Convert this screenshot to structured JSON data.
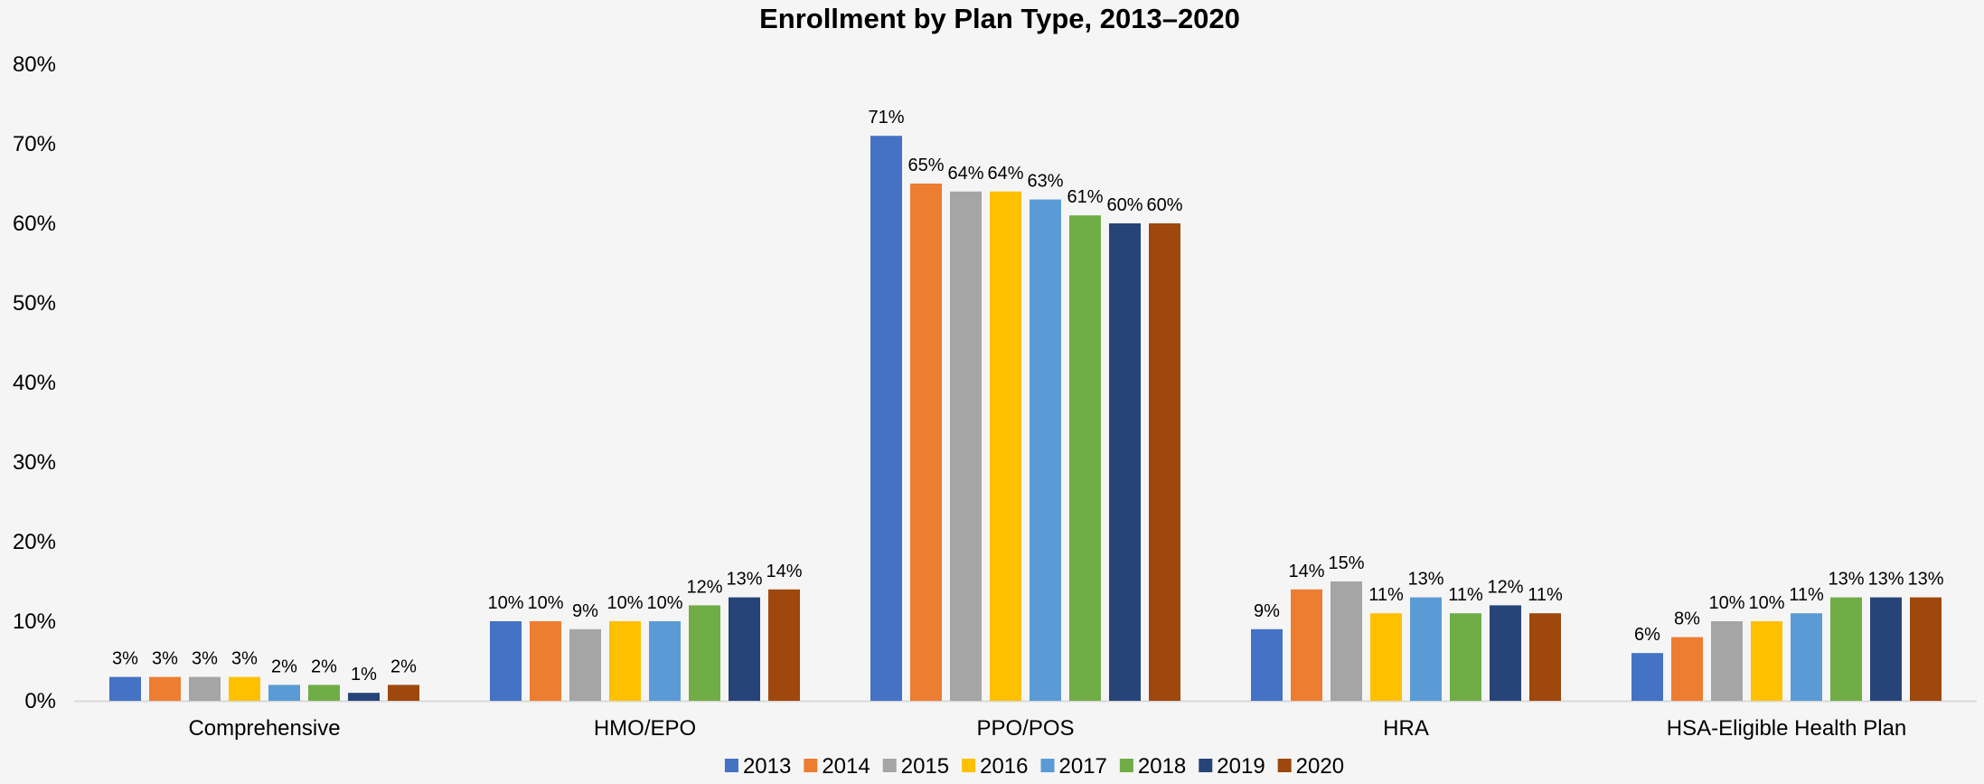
{
  "chart_data": {
    "type": "bar",
    "title": "Enrollment by Plan Type, 2013–2020",
    "xlabel": "",
    "ylabel": "",
    "ylim": [
      0,
      80
    ],
    "yticks": [
      "0%",
      "10%",
      "20%",
      "30%",
      "40%",
      "50%",
      "60%",
      "70%",
      "80%"
    ],
    "grid": false,
    "legend_position": "bottom",
    "categories": [
      "Comprehensive",
      "HMO/EPO",
      "PPO/POS",
      "HRA",
      "HSA-Eligible Health Plan"
    ],
    "series": [
      {
        "name": "2013",
        "color": "#4472c4",
        "values": [
          3,
          10,
          71,
          9,
          6
        ],
        "labels": [
          "3%",
          "10%",
          "71%",
          "9%",
          "6%"
        ]
      },
      {
        "name": "2014",
        "color": "#ed7d31",
        "values": [
          3,
          10,
          65,
          14,
          8
        ],
        "labels": [
          "3%",
          "10%",
          "65%",
          "14%",
          "8%"
        ]
      },
      {
        "name": "2015",
        "color": "#a5a5a5",
        "values": [
          3,
          9,
          64,
          15,
          10
        ],
        "labels": [
          "3%",
          "9%",
          "64%",
          "15%",
          "10%"
        ]
      },
      {
        "name": "2016",
        "color": "#ffc000",
        "values": [
          3,
          10,
          64,
          11,
          10
        ],
        "labels": [
          "3%",
          "10%",
          "64%",
          "11%",
          "10%"
        ]
      },
      {
        "name": "2017",
        "color": "#5b9bd5",
        "values": [
          2,
          10,
          63,
          13,
          11
        ],
        "labels": [
          "2%",
          "10%",
          "63%",
          "13%",
          "11%"
        ]
      },
      {
        "name": "2018",
        "color": "#70ad47",
        "values": [
          2,
          12,
          61,
          11,
          13
        ],
        "labels": [
          "2%",
          "12%",
          "61%",
          "11%",
          "13%"
        ]
      },
      {
        "name": "2019",
        "color": "#264478",
        "values": [
          1,
          13,
          60,
          12,
          13
        ],
        "labels": [
          "1%",
          "13%",
          "60%",
          "12%",
          "13%"
        ]
      },
      {
        "name": "2020",
        "color": "#9e480e",
        "values": [
          2,
          14,
          60,
          11,
          13
        ],
        "labels": [
          "2%",
          "14%",
          "60%",
          "11%",
          "13%"
        ]
      }
    ]
  }
}
